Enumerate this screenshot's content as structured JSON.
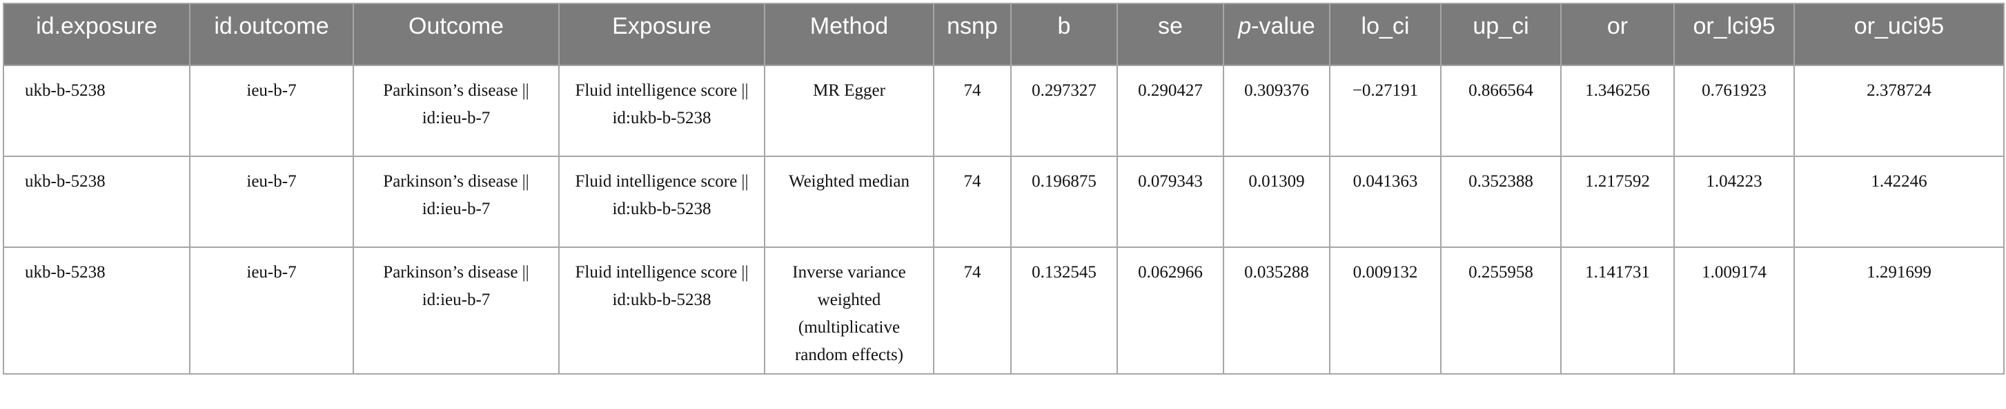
{
  "headers": {
    "id_exposure": "id.exposure",
    "id_outcome": "id.outcome",
    "outcome": "Outcome",
    "exposure": "Exposure",
    "method": "Method",
    "nsnp": "nsnp",
    "b": "b",
    "se": "se",
    "p_value_italic": "p",
    "p_value_rest": "-value",
    "lo_ci": "lo_ci",
    "up_ci": "up_ci",
    "or": "or",
    "or_lci95": "or_lci95",
    "or_uci95": "or_uci95"
  },
  "rows": [
    {
      "id_exposure": "ukb-b-5238",
      "id_outcome": "ieu-b-7",
      "outcome": "Parkinson’s disease || id:ieu-b-7",
      "exposure": "Fluid intelligence score || id:ukb-b-5238",
      "method": "MR Egger",
      "nsnp": "74",
      "b": "0.297327",
      "se": "0.290427",
      "p_value": "0.309376",
      "lo_ci": "−0.27191",
      "up_ci": "0.866564",
      "or": "1.346256",
      "or_lci95": "0.761923",
      "or_uci95": "2.378724"
    },
    {
      "id_exposure": "ukb-b-5238",
      "id_outcome": "ieu-b-7",
      "outcome": "Parkinson’s disease || id:ieu-b-7",
      "exposure": "Fluid intelligence score || id:ukb-b-5238",
      "method": "Weighted median",
      "nsnp": "74",
      "b": "0.196875",
      "se": "0.079343",
      "p_value": "0.01309",
      "lo_ci": "0.041363",
      "up_ci": "0.352388",
      "or": "1.217592",
      "or_lci95": "1.04223",
      "or_uci95": "1.42246"
    },
    {
      "id_exposure": "ukb-b-5238",
      "id_outcome": "ieu-b-7",
      "outcome": "Parkinson’s disease || id:ieu-b-7",
      "exposure": "Fluid intelligence score || id:ukb-b-5238",
      "method": "Inverse variance weighted (multiplicative random effects)",
      "nsnp": "74",
      "b": "0.132545",
      "se": "0.062966",
      "p_value": "0.035288",
      "lo_ci": "0.009132",
      "up_ci": "0.255958",
      "or": "1.141731",
      "or_lci95": "1.009174",
      "or_uci95": "1.291699"
    }
  ]
}
